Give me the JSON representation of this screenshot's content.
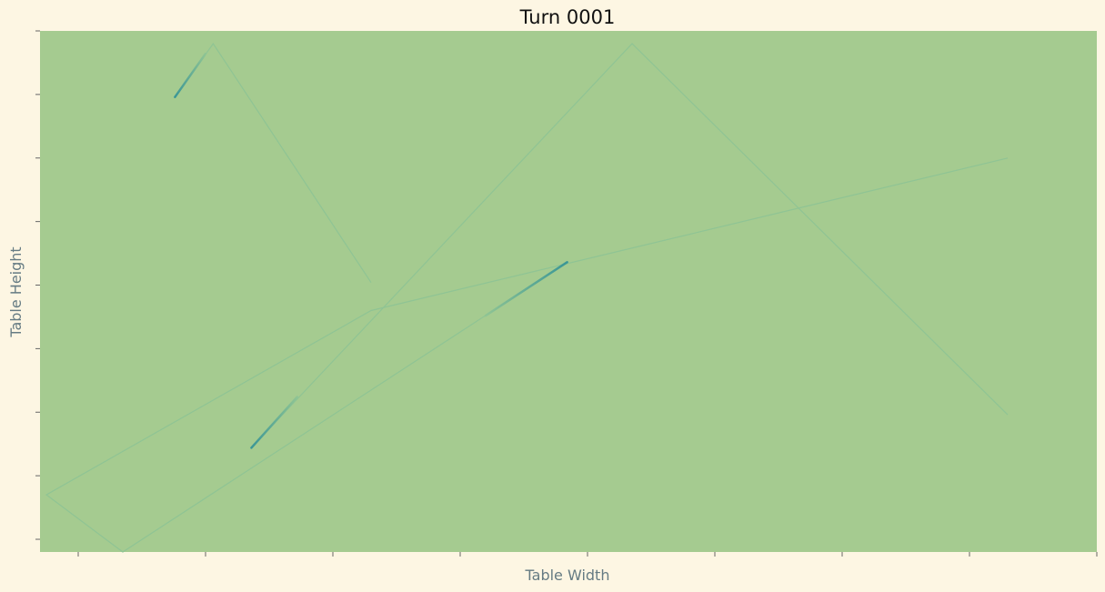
{
  "chart_data": {
    "type": "line",
    "title": "Turn 0001",
    "xlabel": "Table Width",
    "ylabel": "Table Height",
    "xlim": [
      -0.3,
      8.0
    ],
    "ylim": [
      0,
      4.1
    ],
    "x_ticks": [
      0,
      1,
      2,
      3,
      4,
      5,
      6,
      7,
      8
    ],
    "y_ticks": [
      0.1,
      0.6,
      1.1,
      1.6,
      2.1,
      2.6,
      3.1,
      3.6,
      4.1
    ],
    "tick_labels_visible": false,
    "grid": false,
    "legend": "none",
    "table_color": "#a5cb90",
    "background_color": "#fdf6e3",
    "trail_color": "#8fc494",
    "ball_color": "#3a9696",
    "series": [
      {
        "points": [
          [
            0.76,
            3.58
          ],
          [
            1.06,
            4.0
          ],
          [
            2.3,
            2.12
          ]
        ]
      },
      {
        "points": [
          [
            1.36,
            0.82
          ],
          [
            4.35,
            4.0
          ],
          [
            7.3,
            1.08
          ]
        ]
      },
      {
        "points": [
          [
            3.84,
            2.28
          ],
          [
            0.35,
            0.0
          ],
          [
            -0.25,
            0.45
          ],
          [
            2.3,
            1.9
          ],
          [
            7.3,
            3.1
          ]
        ]
      }
    ],
    "balls": [
      {
        "from": [
          0.76,
          3.58
        ],
        "to": [
          1.0,
          3.92
        ]
      },
      {
        "from": [
          1.36,
          0.82
        ],
        "to": [
          1.72,
          1.22
        ]
      },
      {
        "from": [
          3.84,
          2.28
        ],
        "to": [
          3.2,
          1.86
        ]
      }
    ]
  }
}
